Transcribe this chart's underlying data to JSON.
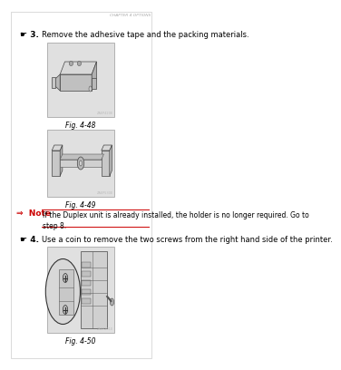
{
  "bg_color": "#ffffff",
  "page_bg": "#f5f5f5",
  "header_text": "CHAPTER 4 OPTIONS",
  "step3_marker": "☛ 3.",
  "step3_text": "Remove the adhesive tape and the packing materials.",
  "fig48_label": "Fig. 4-48",
  "fig49_label": "Fig. 4-49",
  "note_marker": "⇒  Note",
  "note_color": "#cc0000",
  "note_text": "If the Duplex unit is already installed, the holder is no longer required. Go to\nstep 8.",
  "step4_marker": "☛ 4.",
  "step4_text": "Use a coin to remove the two screws from the right hand side of the printer.",
  "fig50_label": "Fig. 4-50",
  "header_color": "#aaaaaa",
  "text_color": "#000000",
  "fig_bg": "#e0e0e0",
  "fig_border": "#999999",
  "outer_border": "#cccccc"
}
